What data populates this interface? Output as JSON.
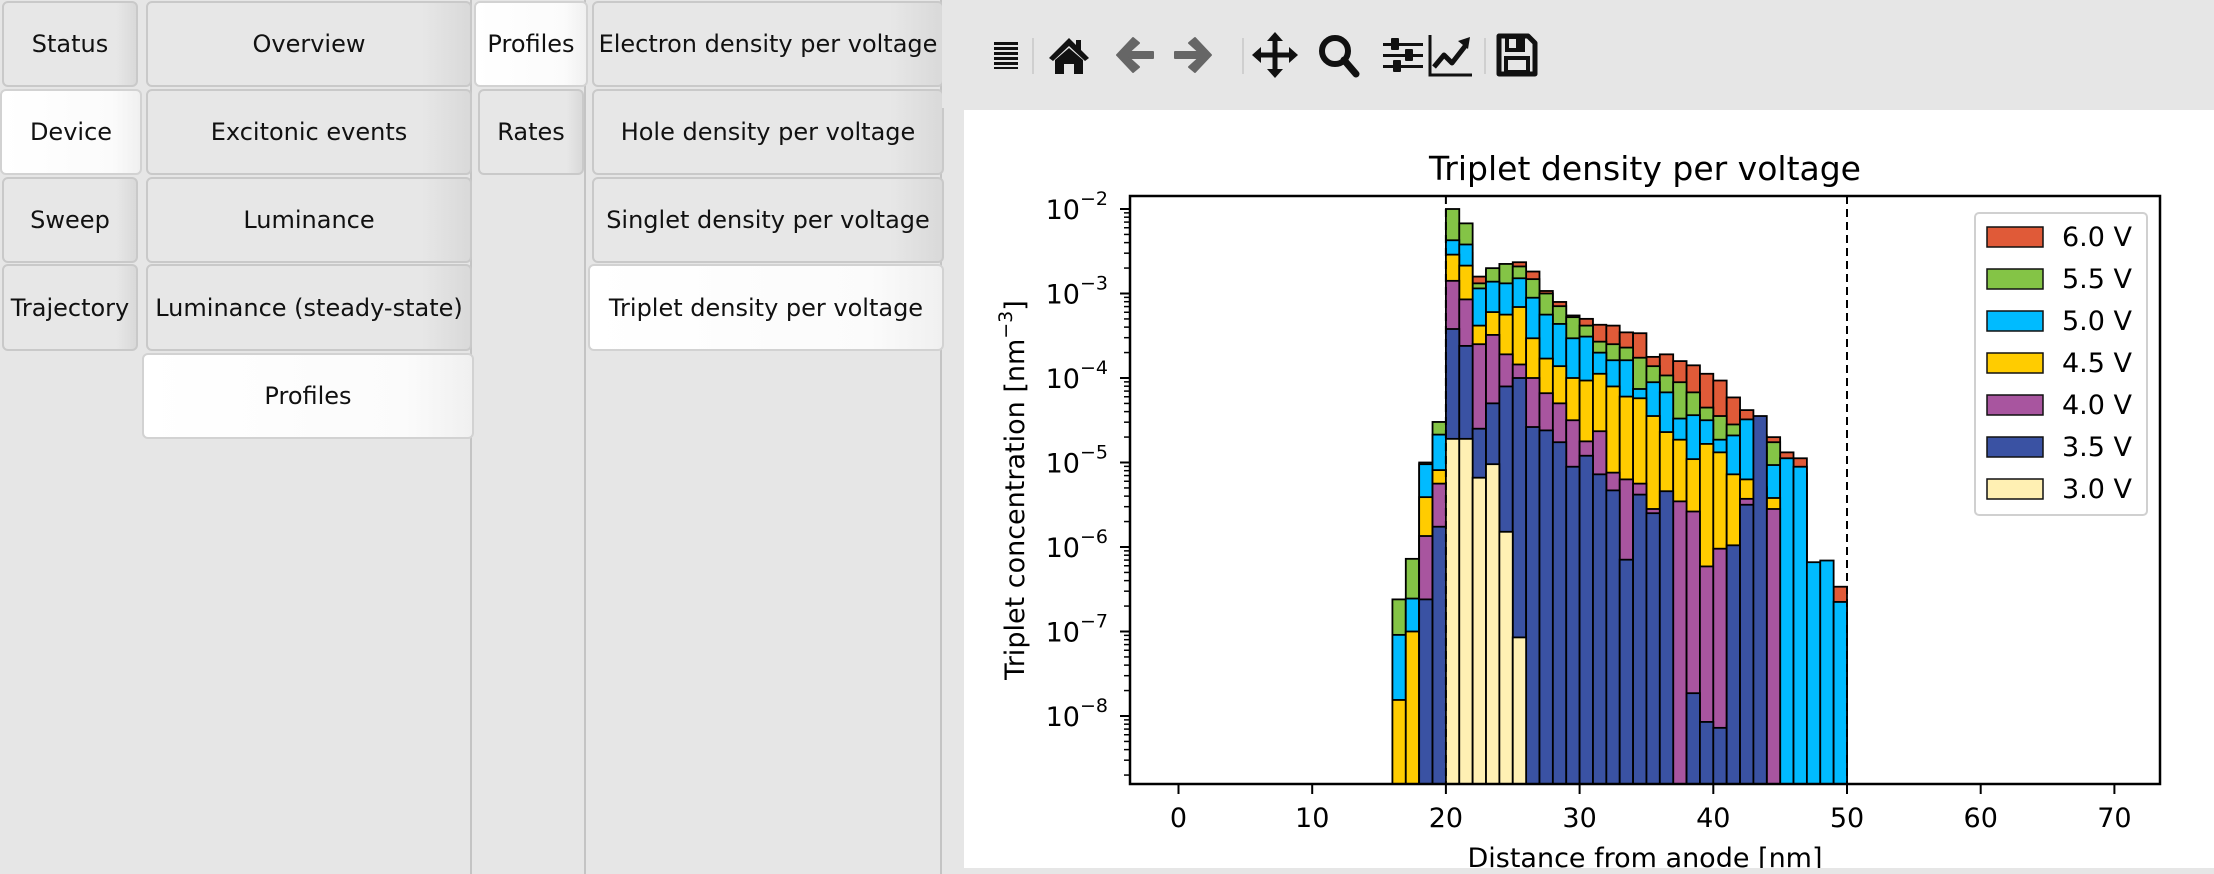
{
  "nav_level1": {
    "items": [
      {
        "label": "Status",
        "active": false
      },
      {
        "label": "Device",
        "active": true
      },
      {
        "label": "Sweep",
        "active": false
      },
      {
        "label": "Trajectory",
        "active": false
      }
    ]
  },
  "nav_level2": {
    "items": [
      {
        "label": "Overview",
        "active": false
      },
      {
        "label": "Excitonic events",
        "active": false
      },
      {
        "label": "Luminance",
        "active": false
      },
      {
        "label": "Luminance (steady-state)",
        "active": false
      },
      {
        "label": "Profiles",
        "active": true
      }
    ]
  },
  "nav_level3": {
    "items": [
      {
        "label": "Profiles",
        "active": true
      },
      {
        "label": "Rates",
        "active": false
      }
    ]
  },
  "nav_level4": {
    "items": [
      {
        "label": "Electron density per voltage",
        "active": false
      },
      {
        "label": "Hole density per voltage",
        "active": false
      },
      {
        "label": "Singlet density per voltage",
        "active": false
      },
      {
        "label": "Triplet density per voltage",
        "active": true
      }
    ]
  },
  "toolbar": {
    "icons": [
      "menu-icon",
      "home-icon",
      "back-arrow-icon",
      "forward-arrow-icon",
      "pan-icon",
      "zoom-magnifier-icon",
      "subplots-sliders-icon",
      "axes-line-icon",
      "save-disk-icon"
    ]
  },
  "chart_data": {
    "type": "bar",
    "stacked": true,
    "title": "Triplet density per voltage",
    "xlabel": "Distance from anode [nm]",
    "ylabel": "Triplet concentration [nm⁻³]",
    "yscale": "log",
    "xlim": [
      -3.5,
      73.5
    ],
    "ylim_log10": [
      -8.8,
      -1.9
    ],
    "xticks": [
      0,
      10,
      20,
      30,
      40,
      50,
      60,
      70
    ],
    "yticks": [
      "10⁻⁸",
      "10⁻⁷",
      "10⁻⁶",
      "10⁻⁵",
      "10⁻⁴",
      "10⁻³",
      "10⁻²"
    ],
    "ytick_log10": [
      -8,
      -7,
      -6,
      -5,
      -4,
      -3,
      -2
    ],
    "vlines_dashed": [
      20,
      50
    ],
    "bin_width_nm": 1,
    "legend_position": "upper right",
    "legend": [
      "6.0 V",
      "5.5 V",
      "5.0 V",
      "4.5 V",
      "4.0 V",
      "3.5 V",
      "3.0 V"
    ],
    "colors": {
      "6.0 V": "#e05a38",
      "5.5 V": "#84c446",
      "5.0 V": "#00bbff",
      "4.5 V": "#ffcc00",
      "4.0 V": "#a8559f",
      "3.5 V": "#3a52a3",
      "3.0 V": "#fff0b3"
    },
    "series_order_bottom_to_top": [
      "3.0 V",
      "3.5 V",
      "4.0 V",
      "4.5 V",
      "5.0 V",
      "5.5 V",
      "6.0 V"
    ],
    "x": [
      16,
      17,
      18,
      19,
      20,
      21,
      22,
      23,
      24,
      25,
      26,
      27,
      28,
      29,
      30,
      31,
      32,
      33,
      34,
      35,
      36,
      37,
      38,
      39,
      40,
      41,
      42,
      43,
      44,
      45,
      46,
      47,
      48,
      49
    ],
    "note": "Values are log10 of each voltage's concentration per bin (bars drawn overlapping in front-to-back order, smaller on top visually stacked); null = not visible",
    "series": [
      {
        "name": "3.0 V",
        "log10_values": [
          null,
          null,
          null,
          null,
          -4.72,
          -4.72,
          -5.18,
          -5.02,
          -5.82,
          -7.07,
          null,
          null,
          null,
          null,
          null,
          null,
          null,
          null,
          null,
          null,
          null,
          null,
          null,
          null,
          null,
          null,
          null,
          null,
          null,
          null,
          null,
          null,
          null,
          null
        ]
      },
      {
        "name": "3.5 V",
        "log10_values": [
          null,
          null,
          -6.62,
          -5.76,
          -3.42,
          -3.62,
          -4.6,
          -4.3,
          -4.1,
          -4.0,
          -4.58,
          -4.62,
          -4.76,
          -5.05,
          -4.92,
          -5.14,
          -5.33,
          -6.15,
          -5.38,
          -5.6,
          -5.34,
          null,
          -7.73,
          -8.07,
          -8.14,
          -5.98,
          -5.5,
          -4.45,
          null,
          null,
          null,
          null,
          null,
          null
        ]
      },
      {
        "name": "4.0 V",
        "log10_values": [
          null,
          null,
          -5.87,
          -5.25,
          -2.85,
          -3.07,
          -3.6,
          -3.49,
          -3.72,
          -3.84,
          -4.0,
          -4.18,
          -4.3,
          -4.5,
          -4.75,
          -4.63,
          -5.12,
          -5.2,
          -5.25,
          -5.55,
          -5.73,
          -5.46,
          -5.58,
          -6.23,
          -6.02,
          -8.11,
          -5.43,
          -5.29,
          -5.55,
          null,
          null,
          null,
          null,
          null
        ]
      },
      {
        "name": "4.5 V",
        "log10_values": [
          -7.81,
          -7.0,
          -5.41,
          -5.09,
          -2.54,
          -2.67,
          -3.38,
          -3.22,
          -3.25,
          -3.16,
          -3.53,
          -3.77,
          -3.86,
          -4.0,
          -4.03,
          -3.95,
          -4.1,
          -4.22,
          -4.24,
          -4.45,
          -4.64,
          -4.73,
          -4.96,
          -4.78,
          -4.88,
          -5.14,
          -5.2,
          -5.31,
          -5.42,
          null,
          null,
          null,
          null,
          null
        ]
      },
      {
        "name": "5.0 V",
        "log10_values": [
          -7.04,
          -6.61,
          -5.02,
          -4.67,
          -2.37,
          -2.42,
          -2.94,
          -2.86,
          -2.88,
          -2.82,
          -3.05,
          -3.25,
          -3.36,
          -3.53,
          -3.51,
          -3.7,
          -3.79,
          -3.79,
          -4.13,
          -4.05,
          -4.17,
          -4.48,
          -4.44,
          -4.5,
          -4.73,
          -4.68,
          -4.49,
          -4.82,
          -5.03,
          -4.95,
          -5.05,
          -6.18,
          -6.16,
          -6.65
        ]
      },
      {
        "name": "5.5 V",
        "log10_values": [
          -6.62,
          -6.14,
          -5.0,
          -4.52,
          -2.0,
          -2.17,
          -2.88,
          -2.7,
          -2.65,
          -2.68,
          -2.83,
          -3.0,
          -3.15,
          -3.28,
          -3.38,
          -3.57,
          -3.6,
          -3.64,
          -3.76,
          -3.86,
          -3.97,
          -4.05,
          -4.17,
          -4.35,
          -4.45,
          -4.55,
          -4.72,
          -4.86,
          -4.76,
          -5.1,
          -5.13,
          -7.68,
          -7.07,
          null
        ]
      },
      {
        "name": "6.0 V",
        "log10_values": [
          null,
          null,
          null,
          null,
          -2.2,
          -2.52,
          -2.8,
          -2.72,
          -2.74,
          -2.63,
          -2.74,
          -2.97,
          -3.1,
          -3.26,
          -3.3,
          -3.37,
          -3.38,
          -3.46,
          -3.47,
          -3.75,
          -3.72,
          -3.8,
          -3.85,
          -3.95,
          -4.03,
          -4.23,
          -4.38,
          -4.68,
          -4.7,
          -4.88,
          -4.95,
          null,
          null,
          -6.47
        ]
      }
    ]
  }
}
